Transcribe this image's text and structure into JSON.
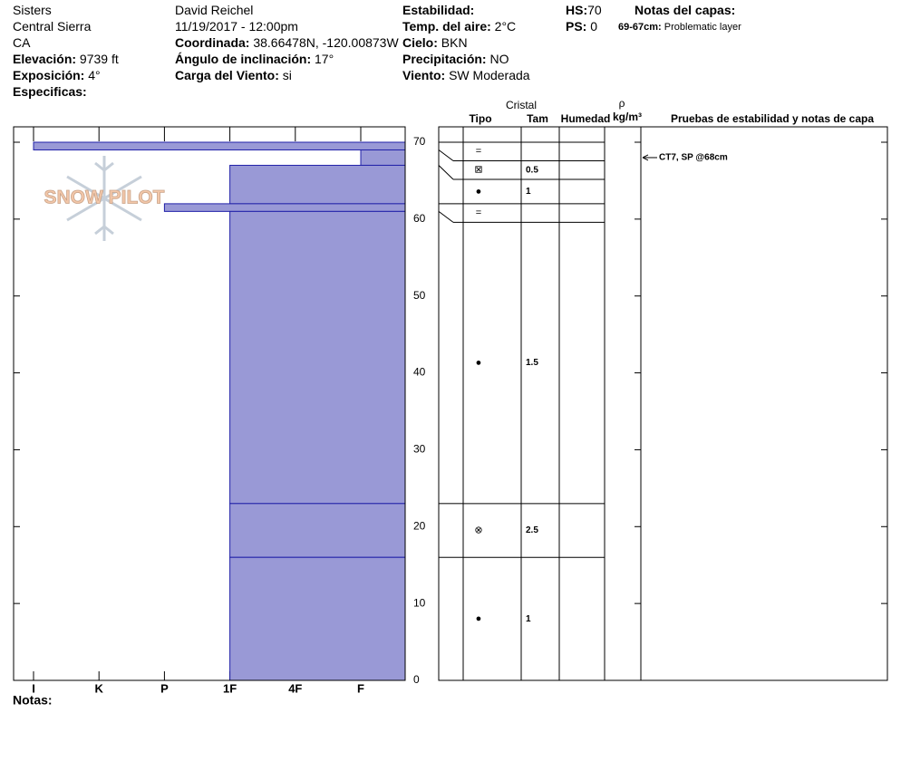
{
  "header": {
    "location": "Sisters",
    "range": "Central Sierra",
    "state": "CA",
    "elevation": {
      "label": "Elevación:",
      "value": "9739 ft"
    },
    "aspect": {
      "label": "Exposición:",
      "value": "4°"
    },
    "specifics": {
      "label": "Especificas:"
    },
    "observer": "David Reichel",
    "datetime": "11/19/2017 - 12:00pm",
    "coords": {
      "label": "Coordinada:",
      "value": "38.66478N, -120.00873W"
    },
    "slope": {
      "label": "Ángulo de inclinación:",
      "value": "17°"
    },
    "wind_loading": {
      "label": "Carga del Viento:",
      "value": "si"
    },
    "stability": {
      "label": "Estabilidad:"
    },
    "air_temp": {
      "label": "Temp. del aire:",
      "value": "2°C"
    },
    "sky": {
      "label": "Cielo:",
      "value": "BKN"
    },
    "precip": {
      "label": "Precipitación:",
      "value": "NO"
    },
    "wind": {
      "label": "Viento:",
      "value": "SW Moderada"
    },
    "hs": {
      "label": "HS:",
      "value": 70
    },
    "ps": {
      "label": "PS:",
      "value": 0
    },
    "layer_notes": {
      "title": "Notas del capas:",
      "range": "69-67cm:",
      "note": "Problematic layer"
    }
  },
  "logo": "SNOW PILOT",
  "columns": {
    "crystal": "Cristal",
    "type": "Tipo",
    "size": "Tam",
    "moisture": "Humedad",
    "rho": "ρ",
    "density": "kg/m³",
    "tests": "Pruebas de estabilidad y notas de capa"
  },
  "notes_label": "Notas:",
  "chart_data": {
    "type": "profile",
    "categories": [
      "I",
      "K",
      "P",
      "1F",
      "4F",
      "F"
    ],
    "ylim": [
      0,
      70
    ],
    "yticks": [
      0,
      10,
      20,
      30,
      40,
      50,
      60,
      70
    ],
    "color": "#9999d6",
    "edge_color": "#2020a8",
    "layers": [
      {
        "top": 70,
        "bottom": 69,
        "hardness": "I",
        "grain": "="
      },
      {
        "top": 69,
        "bottom": 67,
        "hardness": "F",
        "grain": "⊠",
        "size": 0.5
      },
      {
        "top": 67,
        "bottom": 62,
        "hardness": "1F",
        "grain": "●",
        "size": 1
      },
      {
        "top": 62,
        "bottom": 61,
        "hardness": "P",
        "grain": "="
      },
      {
        "top": 61,
        "bottom": 23,
        "hardness": "1F",
        "grain": "●",
        "size": 1.5
      },
      {
        "top": 23,
        "bottom": 16,
        "hardness": "1F",
        "grain": "⊗",
        "size": 2.5
      },
      {
        "top": 16,
        "bottom": 0,
        "hardness": "1F",
        "grain": "●",
        "size": 1
      }
    ],
    "tests": [
      {
        "label": "CT7, SP @68cm",
        "height": 68
      }
    ]
  }
}
